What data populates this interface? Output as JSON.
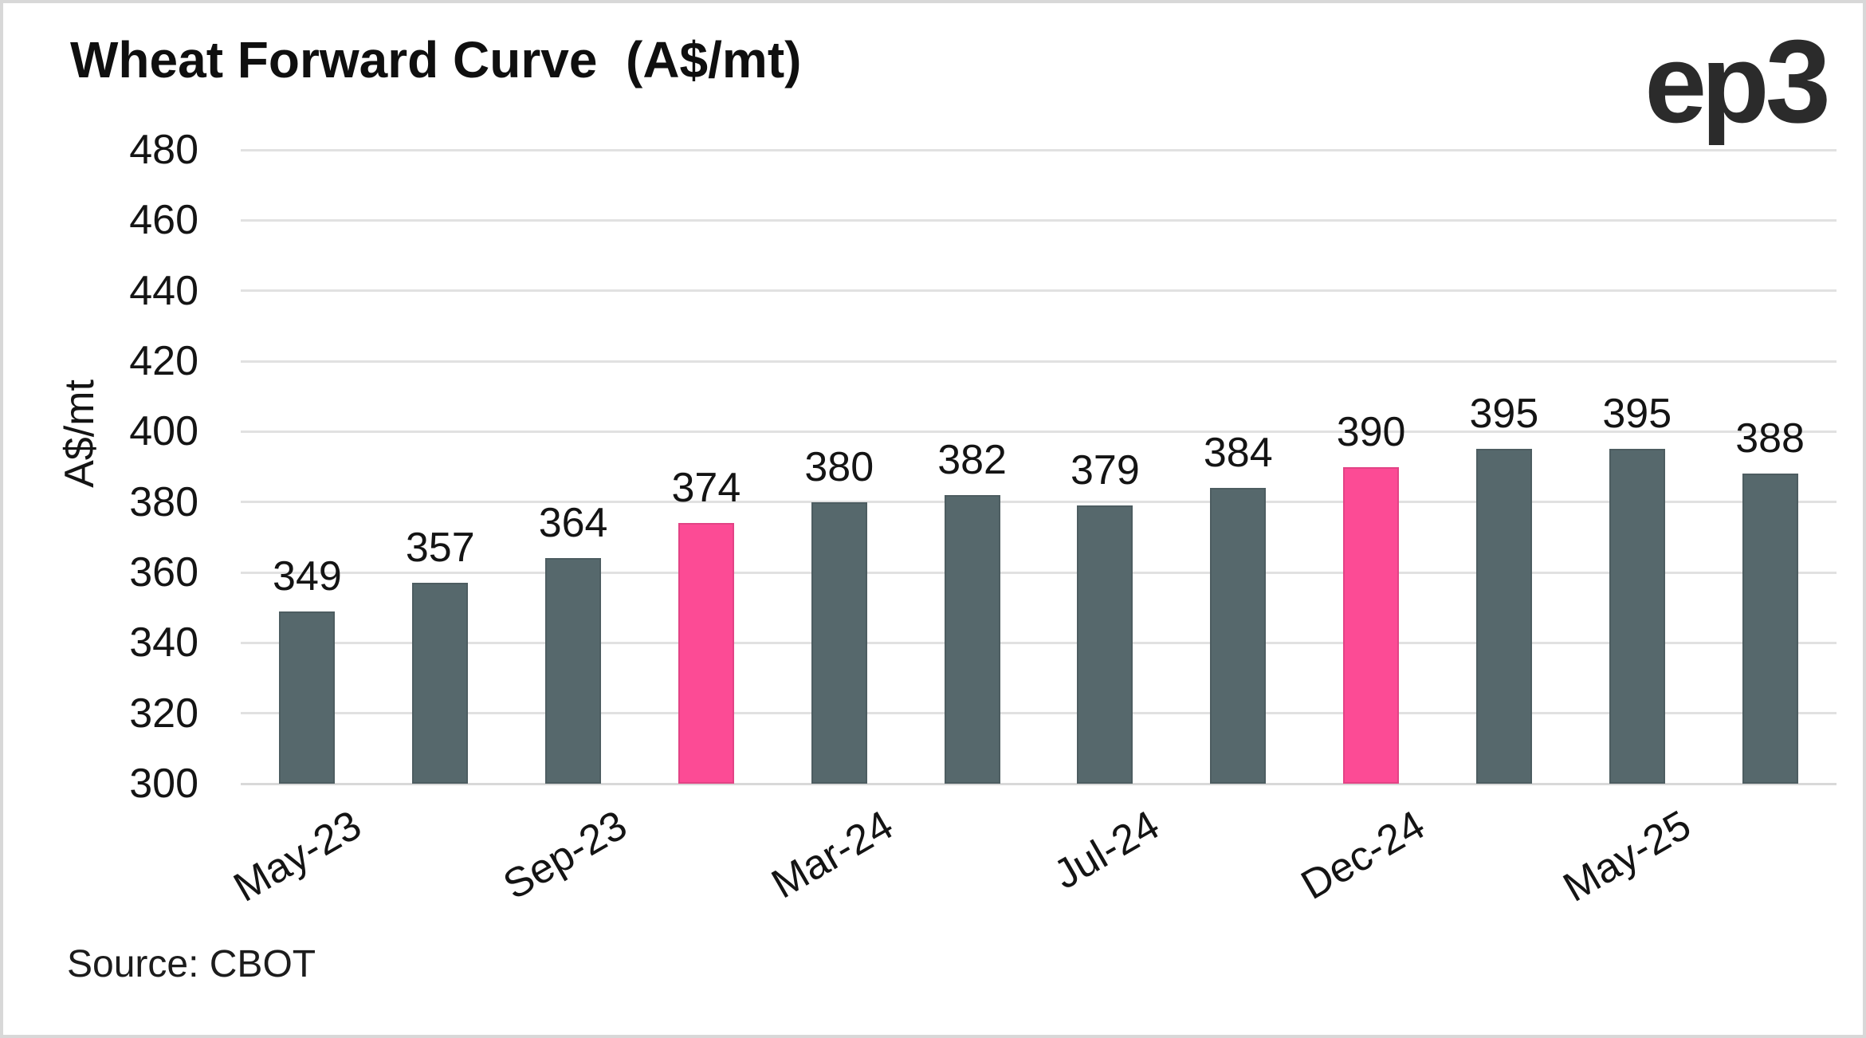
{
  "header": {
    "title": "Wheat Forward Curve  (A$/mt)",
    "logo_ep": "ep",
    "logo_3": "3"
  },
  "footer": {
    "source": "Source: CBOT"
  },
  "colors": {
    "bar": "#56686C",
    "bar_highlight": "#FC4B95",
    "gridline": "#E1E1E1",
    "baseline": "#D9D9D9",
    "axis_text": "#141414",
    "background": "#FFFFFF",
    "page_border": "#D8D8D8",
    "logo_text": "#2B2B2B"
  },
  "chart_data": {
    "type": "bar",
    "title": "Wheat Forward Curve (A$/mt)",
    "ylabel": "A$/mt",
    "xlabel": "",
    "ylim": [
      300,
      480
    ],
    "yticks": [
      300,
      320,
      340,
      360,
      380,
      400,
      420,
      440,
      460,
      480
    ],
    "grid": "horizontal",
    "legend": "none",
    "values": [
      349,
      357,
      364,
      374,
      380,
      382,
      379,
      384,
      390,
      395,
      395,
      388
    ],
    "bar_value_labels": [
      "349",
      "357",
      "364",
      "374",
      "380",
      "382",
      "379",
      "384",
      "390",
      "395",
      "395",
      "388"
    ],
    "highlight_indices": [
      3,
      8
    ],
    "xtick_labels": [
      {
        "index": 0,
        "label": "May-23"
      },
      {
        "index": 2,
        "label": "Sep-23"
      },
      {
        "index": 4,
        "label": "Mar-24"
      },
      {
        "index": 6,
        "label": "Jul-24"
      },
      {
        "index": 8,
        "label": "Dec-24"
      },
      {
        "index": 10,
        "label": "May-25"
      }
    ]
  }
}
